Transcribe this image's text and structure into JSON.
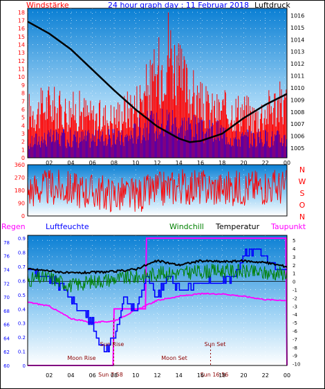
{
  "header": {
    "left_label": "Windstärke",
    "title": "24 hour graph day : 11 Februar 2018",
    "right_label": "Luftdruck"
  },
  "colors": {
    "panel_top": "#0a7fd4",
    "panel_bottom": "#ffffff",
    "red": "#ff0000",
    "blue": "#0000ff",
    "black": "#000000",
    "green": "#008000",
    "magenta": "#ff00ff",
    "darkred": "#8b0000"
  },
  "time_ticks": [
    "02",
    "04",
    "06",
    "08",
    "10",
    "12",
    "14",
    "16",
    "18",
    "20",
    "22",
    "00"
  ],
  "chart_data": [
    {
      "type": "line",
      "title": "",
      "left_axis": {
        "label": "Windstärke",
        "ticks": [
          0,
          1,
          2,
          3,
          4,
          5,
          6,
          7,
          8,
          9,
          10,
          11,
          12,
          13,
          14,
          15,
          16,
          17,
          18
        ]
      },
      "right_axis": {
        "label": "Luftdruck",
        "ticks": [
          1005,
          1006,
          1007,
          1008,
          1009,
          1010,
          1011,
          1012,
          1013,
          1014,
          1015,
          1016
        ]
      },
      "series": [
        {
          "name": "",
          "kind": "gust",
          "unit": "Bft",
          "x": [
            0,
            1,
            2,
            3,
            4,
            5,
            6,
            7,
            8,
            9,
            10,
            11,
            12,
            13,
            14,
            15,
            16,
            17,
            18,
            19,
            20,
            21,
            22,
            23,
            24
          ],
          "values": [
            7,
            7,
            8,
            7,
            7,
            7,
            6,
            6,
            6,
            7,
            8,
            10,
            12,
            17,
            12,
            10,
            8,
            7,
            7,
            7,
            7,
            6,
            7,
            8,
            8
          ]
        },
        {
          "name": "",
          "kind": "wind",
          "unit": "Bft",
          "x": [
            0,
            1,
            2,
            3,
            4,
            5,
            6,
            7,
            8,
            9,
            10,
            11,
            12,
            13,
            14,
            15,
            16,
            17,
            18,
            19,
            20,
            21,
            22,
            23,
            24
          ],
          "values": [
            2,
            3,
            3,
            3,
            3,
            3,
            3,
            3,
            3,
            3,
            4,
            5,
            5,
            6,
            5,
            5,
            4,
            4,
            4,
            3,
            3,
            3,
            3,
            3,
            3
          ]
        },
        {
          "name": "",
          "kind": "pressure",
          "unit": "hPa",
          "x": [
            0,
            2,
            4,
            6,
            8,
            10,
            12,
            14,
            15,
            16,
            18,
            20,
            22,
            24
          ],
          "values": [
            1015.5,
            1014.5,
            1013.2,
            1011.5,
            1009.8,
            1008.2,
            1006.8,
            1005.8,
            1005.5,
            1005.6,
            1006.2,
            1007.5,
            1008.6,
            1009.5
          ]
        }
      ]
    },
    {
      "type": "scatter",
      "title": "",
      "left_axis": {
        "label": "",
        "ticks": [
          0,
          90,
          180,
          270,
          360
        ]
      },
      "right_axis": {
        "label": "",
        "ticks": [
          "N",
          "W",
          "S",
          "O",
          "N"
        ]
      },
      "series": [
        {
          "name": "",
          "kind": "wind_direction",
          "unit": "°",
          "x": [
            0,
            2,
            4,
            6,
            8,
            10,
            12,
            14,
            16,
            18,
            20,
            22,
            24
          ],
          "values": [
            180,
            200,
            190,
            170,
            150,
            140,
            180,
            210,
            200,
            190,
            200,
            210,
            200
          ]
        }
      ]
    },
    {
      "type": "line",
      "title": "",
      "header_labels": [
        "Regen",
        "Luftfeuchte",
        "Windchill",
        "Temperatur",
        "Taupunkt"
      ],
      "left_axis_rain": {
        "label": "Regen",
        "ticks": [
          0,
          0.1,
          0.2,
          0.3,
          0.4,
          0.5,
          0.6,
          0.7,
          0.8,
          0.9
        ]
      },
      "left_axis_humidity": {
        "label": "Luftfeuchte",
        "ticks": [
          60,
          62,
          64,
          66,
          68,
          70,
          72,
          74,
          76,
          78
        ]
      },
      "right_axis_temp": {
        "label": "",
        "ticks": [
          5,
          4,
          3,
          2,
          1,
          0,
          -1,
          -2,
          -3,
          -4,
          -5,
          -6,
          -7,
          -8,
          -9,
          -10
        ]
      },
      "annotations": [
        "Moon Rise",
        "Sun Rise",
        "Moon Set",
        "Sun Set",
        "Sun 7:58",
        "Sun 16:56"
      ],
      "series": [
        {
          "name": "",
          "kind": "temperature",
          "unit": "°C",
          "x": [
            0,
            2,
            4,
            6,
            8,
            10,
            12,
            14,
            16,
            18,
            20,
            22,
            24
          ],
          "values": [
            1.5,
            1.3,
            1.0,
            1.1,
            1.2,
            1.5,
            2.5,
            2.0,
            2.5,
            2.4,
            2.5,
            2.3,
            1.8
          ]
        },
        {
          "name": "",
          "kind": "windchill",
          "unit": "°C",
          "x": [
            0,
            2,
            4,
            6,
            8,
            10,
            12,
            14,
            16,
            18,
            20,
            22,
            24
          ],
          "values": [
            0.2,
            0.5,
            -0.5,
            0.0,
            0.3,
            0.5,
            1.0,
            1.0,
            1.2,
            1.3,
            1.2,
            1.0,
            1.0
          ]
        },
        {
          "name": "",
          "kind": "dewpoint",
          "unit": "°C",
          "x": [
            0,
            2,
            4,
            6,
            8,
            10,
            12,
            14,
            16,
            18,
            20,
            22,
            24
          ],
          "values": [
            -2.5,
            -3.0,
            -4.5,
            -5.0,
            -4.8,
            -3.5,
            -2.3,
            -1.8,
            -1.5,
            -1.5,
            -1.8,
            -2.2,
            -2.3
          ]
        },
        {
          "name": "",
          "kind": "humidity",
          "unit": "%",
          "x": [
            0,
            2,
            4,
            6,
            7,
            8,
            9,
            10,
            11,
            12,
            13,
            14,
            16,
            18,
            19,
            20,
            21,
            22,
            23,
            24
          ],
          "values": [
            74,
            73,
            70,
            66,
            62,
            64,
            70,
            68,
            73,
            70,
            73,
            71,
            72,
            72,
            73,
            76,
            77,
            76,
            74,
            74
          ]
        },
        {
          "name": "",
          "kind": "rain",
          "unit": "mm",
          "x": [
            0,
            7.9,
            8.0,
            10.9,
            11.0,
            23.9,
            24
          ],
          "values": [
            0,
            0,
            0.4,
            0.4,
            0.9,
            0.9,
            0
          ]
        }
      ]
    }
  ]
}
